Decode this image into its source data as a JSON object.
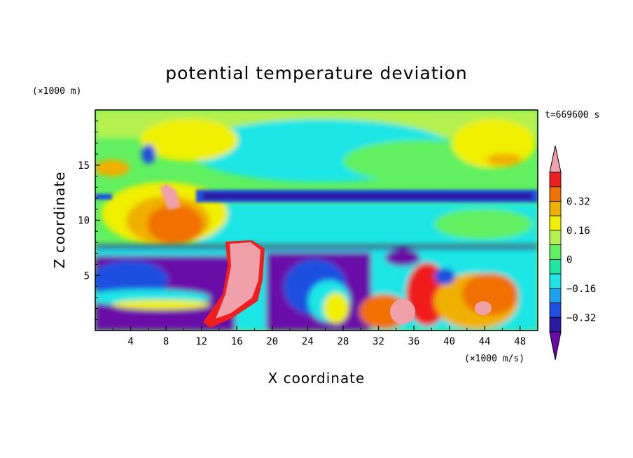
{
  "chart_data": {
    "type": "heatmap",
    "title": "potential temperature deviation",
    "xlabel": "X coordinate",
    "ylabel": "Z coordinate",
    "x_scale_label": "(×1000 m/s)",
    "y_scale_label": "(×1000 m)",
    "time_label": "t=669600 s",
    "xlim": [
      0,
      50
    ],
    "ylim": [
      0,
      20
    ],
    "x_ticks": [
      "4",
      "8",
      "12",
      "16",
      "20",
      "24",
      "28",
      "32",
      "36",
      "40",
      "44",
      "48"
    ],
    "y_ticks": [
      "5",
      "10",
      "15"
    ],
    "colorbar": {
      "levels": [
        -0.48,
        -0.4,
        -0.32,
        -0.24,
        -0.16,
        -0.08,
        0,
        0.08,
        0.16,
        0.24,
        0.32,
        0.4
      ],
      "labels": [
        "0.32",
        "0.16",
        "0",
        "−0.16",
        "−0.32"
      ],
      "colors": [
        "#6a0aa8",
        "#2a1aa0",
        "#1e4fe0",
        "#1ea0f0",
        "#1ee6e6",
        "#1ee6a0",
        "#60f060",
        "#b4f050",
        "#f0f000",
        "#f0b000",
        "#f07000",
        "#f01e1e",
        "#f0a0a8"
      ],
      "extend": "both"
    },
    "fields": [
      {
        "name": "upper background",
        "z_range": [
          15,
          20
        ],
        "value": 0.04
      },
      {
        "name": "jet layer",
        "z_range": [
          11.5,
          12.5
        ],
        "value": -0.4
      },
      {
        "name": "middle layer",
        "z_range": [
          8,
          11
        ],
        "value": -0.12
      },
      {
        "name": "lower mixed layer",
        "z_range": [
          0,
          7.5
        ],
        "value": -0.3
      },
      {
        "name": "warm plume",
        "x_range": [
          14,
          20
        ],
        "z_range": [
          1,
          8
        ],
        "value": 0.45
      },
      {
        "name": "warm patch",
        "x_range": [
          5,
          11
        ],
        "z_range": [
          8,
          13
        ],
        "value": 0.32
      }
    ]
  }
}
